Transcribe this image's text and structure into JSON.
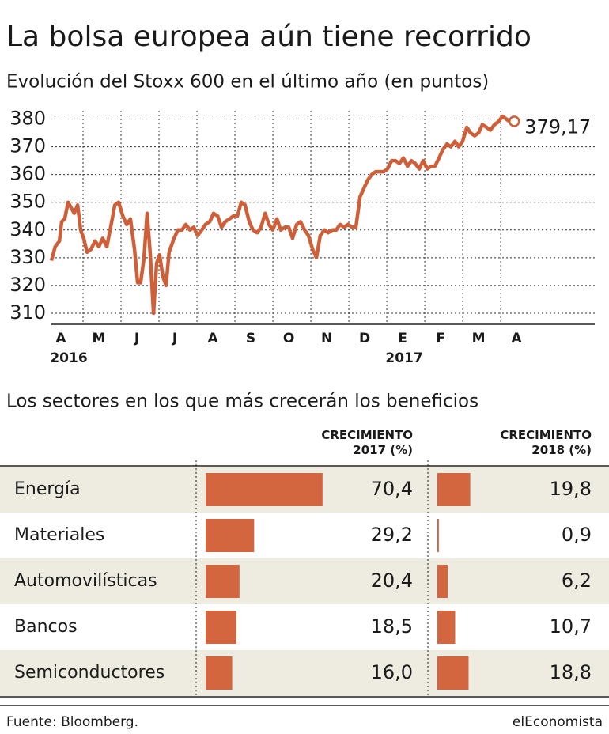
{
  "title": "La bolsa europea aún tiene recorrido",
  "chart_data": [
    {
      "type": "line",
      "title": "Evolución del Stoxx 600 en el último año (en puntos)",
      "color": "#cf5f38",
      "x": [
        0,
        0.1,
        0.21,
        0.27,
        0.35,
        0.44,
        0.52,
        0.6,
        0.69,
        0.77,
        0.85,
        0.94,
        1.04,
        1.15,
        1.25,
        1.35,
        1.46,
        1.56,
        1.67,
        1.77,
        1.88,
        1.98,
        2.08,
        2.19,
        2.27,
        2.35,
        2.44,
        2.52,
        2.6,
        2.69,
        2.77,
        2.85,
        2.94,
        3.02,
        3.1,
        3.23,
        3.33,
        3.44,
        3.54,
        3.65,
        3.75,
        3.85,
        3.96,
        4.06,
        4.17,
        4.27,
        4.38,
        4.48,
        4.58,
        4.69,
        4.79,
        4.9,
        5,
        5.1,
        5.21,
        5.31,
        5.42,
        5.52,
        5.63,
        5.73,
        5.83,
        5.94,
        6.04,
        6.15,
        6.25,
        6.35,
        6.46,
        6.56,
        6.67,
        6.77,
        6.88,
        6.98,
        7.08,
        7.19,
        7.29,
        7.4,
        7.5,
        7.6,
        7.71,
        7.81,
        7.92,
        8.02,
        8.13,
        8.23,
        8.33,
        8.44,
        8.54,
        8.65,
        8.75,
        8.85,
        8.96,
        9.06,
        9.17,
        9.27,
        9.38,
        9.48,
        9.58,
        9.69,
        9.79,
        9.9,
        10,
        10.1,
        10.21,
        10.31,
        10.42,
        10.52,
        10.63,
        10.73,
        10.83,
        10.94,
        11.04,
        11.15,
        11.25,
        11.35,
        11.46,
        11.56,
        11.67,
        11.77,
        11.88,
        11.98,
        12.08,
        12.19
      ],
      "values": [
        329,
        334,
        336,
        343,
        344,
        350,
        348,
        346,
        349,
        340,
        337,
        332,
        333,
        336,
        334,
        337,
        334,
        341,
        349,
        350,
        345,
        342,
        344,
        333,
        321,
        321,
        330,
        346,
        332,
        310,
        328,
        331,
        323,
        320,
        332,
        337,
        340,
        340,
        342,
        340,
        341,
        338,
        340,
        342,
        343,
        346,
        345,
        341,
        343,
        344,
        345,
        345,
        350,
        349,
        343,
        340,
        339,
        341,
        346,
        342,
        340,
        344,
        340,
        341,
        341,
        337,
        342,
        343,
        340,
        338,
        333,
        330,
        338,
        340,
        339,
        340,
        340,
        342,
        341,
        342,
        341,
        341,
        352,
        355,
        358,
        360,
        361,
        361,
        361,
        362,
        365,
        365,
        364,
        366,
        363,
        365,
        364,
        362,
        365,
        362,
        363,
        363,
        366,
        369,
        371,
        370,
        372,
        370,
        372,
        377,
        375,
        374,
        375,
        378,
        377,
        376,
        378,
        379,
        381,
        380,
        379,
        379.17
      ],
      "last_value_label": "379,17",
      "xlim": [
        0,
        14.31
      ],
      "xticks": [
        {
          "value": 0.25,
          "label": "A"
        },
        {
          "value": 1.25,
          "label": "M"
        },
        {
          "value": 2.25,
          "label": "J"
        },
        {
          "value": 3.25,
          "label": "J"
        },
        {
          "value": 4.25,
          "label": "A"
        },
        {
          "value": 5.25,
          "label": "S"
        },
        {
          "value": 6.25,
          "label": "O"
        },
        {
          "value": 7.25,
          "label": "N"
        },
        {
          "value": 8.25,
          "label": "D"
        },
        {
          "value": 9.25,
          "label": "E"
        },
        {
          "value": 10.25,
          "label": "F"
        },
        {
          "value": 11.25,
          "label": "M"
        },
        {
          "value": 12.25,
          "label": "A"
        }
      ],
      "year_labels": [
        "2016",
        "2017"
      ],
      "ylim": [
        306,
        383
      ],
      "yticks": [
        310,
        320,
        330,
        340,
        350,
        360,
        370,
        380
      ],
      "grid": true
    },
    {
      "type": "bar",
      "title": "Los sectores en los que más crecerán los beneficios",
      "categories": [
        "Energía",
        "Materiales",
        "Automovilísticas",
        "Bancos",
        "Semiconductores"
      ],
      "series": [
        {
          "name": "CRECIMIENTO 2017 (%)",
          "color": "#d4663f",
          "values": [
            70.4,
            29.2,
            20.4,
            18.5,
            16.0
          ],
          "value_labels": [
            "70,4",
            "29,2",
            "20,4",
            "18,5",
            "16,0"
          ]
        },
        {
          "name": "CRECIMIENTO 2018 (%)",
          "color": "#d4663f",
          "values": [
            19.8,
            0.9,
            6.2,
            10.7,
            18.8
          ],
          "value_labels": [
            "19,8",
            "0,9",
            "6,2",
            "10,7",
            "18,8"
          ]
        }
      ]
    }
  ],
  "source": "Fuente: Bloomberg.",
  "brand": "elEconomista"
}
